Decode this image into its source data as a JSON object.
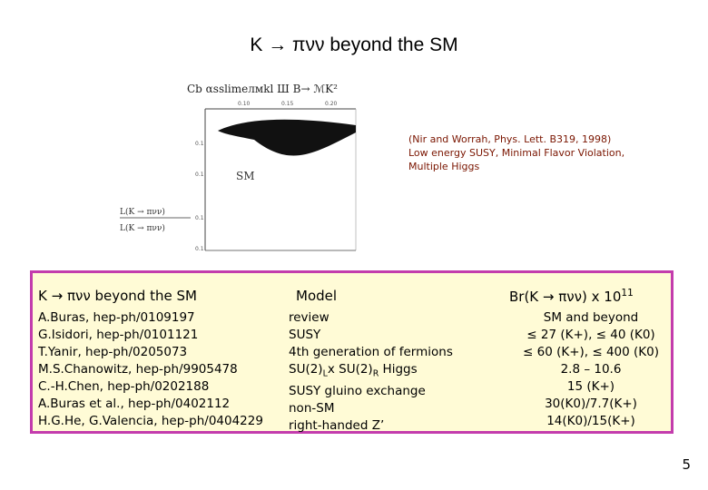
{
  "slide": {
    "title": "K → πνν beyond the SM",
    "page_number": "5"
  },
  "figure": {
    "top_text": "Cb αsslimeлмkl Ш Β→ ℳΚ²",
    "left_label": "L(K → πνν)",
    "left_label2": "L(K → πνν)",
    "sm_label": "SM"
  },
  "citation": {
    "line1": "(Nir and Worrah, Phys. Lett. B319, 1998)",
    "line2": "Low energy SUSY, Minimal Flavor Violation,",
    "line3": "Multiple Higgs"
  },
  "table": {
    "headers": {
      "ref": "K → πνν beyond the SM",
      "model": "Model",
      "br": "Br(K → πνν) x 10"
    },
    "refs": [
      "A.Buras, hep-ph/0109197",
      "G.Isidori, hep-ph/0101121",
      "T.Yanir, hep-ph/0205073",
      "M.S.Chanowitz, hep-ph/9905478",
      "C.-H.Chen, hep-ph/0202188",
      "A.Buras et al., hep-ph/0402112",
      "H.G.He, G.Valencia, hep-ph/0404229"
    ],
    "models": [
      "review",
      "SUSY",
      "4th generation of fermions",
      "SU(2)",
      "SUSY gluino exchange",
      "non-SM",
      "right-handed Z’"
    ],
    "brs": [
      "SM and beyond",
      "≤ 27 (K+),   ≤ 40 (K0)",
      "≤ 60 (K+),   ≤ 400 (K0)",
      "2.8 – 10.6",
      "15 (K+)",
      "30(K0)/7.7(K+)",
      "14(K0)/15(K+)"
    ]
  },
  "colors": {
    "table_border": "#c33cad",
    "table_bg": "#fffbd6",
    "citation": "#7a1500"
  }
}
